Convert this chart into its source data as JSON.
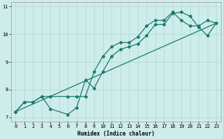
{
  "xlabel": "Humidex (Indice chaleur)",
  "bg_color": "#ceecea",
  "line_color": "#1a7a6e",
  "grid_color": "#aed8d4",
  "xlim": [
    -0.5,
    23.5
  ],
  "ylim": [
    6.85,
    11.15
  ],
  "xticks": [
    0,
    1,
    2,
    3,
    4,
    5,
    6,
    7,
    8,
    9,
    10,
    11,
    12,
    13,
    14,
    15,
    16,
    17,
    18,
    19,
    20,
    21,
    22,
    23
  ],
  "yticks": [
    7,
    8,
    9,
    10,
    11
  ],
  "line1_x": [
    0,
    1,
    2,
    3,
    4,
    6,
    7,
    8,
    9,
    10,
    11,
    12,
    13,
    14,
    15,
    16,
    17,
    18,
    19,
    20,
    21,
    22,
    23
  ],
  "line1_y": [
    7.2,
    7.55,
    7.55,
    7.75,
    7.3,
    7.1,
    7.35,
    8.35,
    8.05,
    8.65,
    9.2,
    9.45,
    9.55,
    9.65,
    9.95,
    10.35,
    10.35,
    10.75,
    10.8,
    10.65,
    10.25,
    9.95,
    10.4
  ],
  "line2_x": [
    0,
    1,
    2,
    3,
    4,
    6,
    7,
    8,
    9,
    10,
    11,
    12,
    13,
    14,
    15,
    16,
    17,
    18,
    19,
    20,
    21,
    22,
    23
  ],
  "line2_y": [
    7.2,
    7.55,
    7.55,
    7.75,
    7.75,
    7.75,
    7.75,
    7.75,
    8.65,
    9.2,
    9.55,
    9.7,
    9.7,
    9.9,
    10.3,
    10.5,
    10.5,
    10.8,
    10.5,
    10.3,
    10.3,
    10.5,
    10.4
  ],
  "line3_x": [
    0,
    23
  ],
  "line3_y": [
    7.2,
    10.4
  ]
}
